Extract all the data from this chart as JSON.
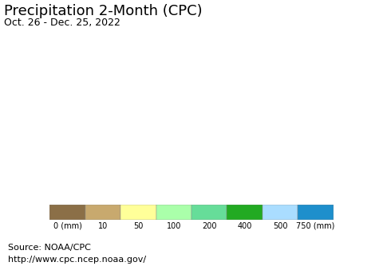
{
  "title": "Precipitation 2-Month (CPC)",
  "subtitle": "Oct. 26 - Dec. 25, 2022",
  "source_line1": "Source: NOAA/CPC",
  "source_line2": "http://www.cpc.ncep.noaa.gov/",
  "colorbar_colors": [
    "#8B6F47",
    "#C8A96E",
    "#FFFF99",
    "#AAFFAA",
    "#66DD99",
    "#22AA22",
    "#AADDFF",
    "#1E8FCC"
  ],
  "colorbar_labels": [
    "0 (mm)",
    "10",
    "50",
    "100",
    "200",
    "400",
    "500",
    "750 (mm)"
  ],
  "ocean_color": "#AAFFFF",
  "land_bg": "#FFFF99",
  "title_fontsize": 13,
  "subtitle_fontsize": 9,
  "source_fontsize": 8,
  "country_colors": {
    "Canada": "#AAFFAA",
    "United States of America": "#AAFFAA",
    "Mexico": "#FFFF99",
    "Guatemala": "#AAFFAA",
    "Belize": "#AAFFAA",
    "Honduras": "#AAFFAA",
    "El Salvador": "#AAFFAA",
    "Nicaragua": "#AAFFAA",
    "Costa Rica": "#66DD99",
    "Panama": "#66DD99",
    "Cuba": "#FFFF99",
    "Jamaica": "#FFFF99",
    "Haiti": "#FFFF99",
    "Dominican Rep.": "#FFFF99",
    "Puerto Rico": "#FFFF99",
    "Trinidad and Tobago": "#66DD99",
    "Colombia": "#66DD99",
    "Venezuela": "#FFFF99",
    "Guyana": "#66DD99",
    "Suriname": "#66DD99",
    "Fr. Guiana": "#66DD99",
    "Brazil": "#66DD99",
    "Ecuador": "#66DD99",
    "Peru": "#FFFF99",
    "Bolivia": "#AAFFAA",
    "Chile": "#8B6F47",
    "Argentina": "#FFFF99",
    "Uruguay": "#FFFF99",
    "Paraguay": "#AAFFAA",
    "Iceland": "#AAFFAA",
    "Norway": "#AAFFAA",
    "Sweden": "#AAFFAA",
    "Finland": "#AAFFAA",
    "Denmark": "#AAFFAA",
    "United Kingdom": "#AAFFAA",
    "Ireland": "#AAFFAA",
    "Portugal": "#FFFF99",
    "Spain": "#FFFF99",
    "France": "#AAFFAA",
    "Belgium": "#AAFFAA",
    "Netherlands": "#AAFFAA",
    "Luxembourg": "#AAFFAA",
    "Germany": "#AAFFAA",
    "Switzerland": "#AAFFAA",
    "Austria": "#AAFFAA",
    "Italy": "#FFFF99",
    "Czech Rep.": "#AAFFAA",
    "Slovakia": "#AAFFAA",
    "Poland": "#AAFFAA",
    "Hungary": "#AAFFAA",
    "Romania": "#AAFFAA",
    "Bulgaria": "#FFFF99",
    "Serbia": "#AAFFAA",
    "Croatia": "#FFFF99",
    "Bosnia and Herz.": "#FFFF99",
    "Slovenia": "#AAFFAA",
    "Albania": "#FFFF99",
    "North Macedonia": "#FFFF99",
    "Greece": "#FFFF99",
    "Estonia": "#AAFFAA",
    "Latvia": "#AAFFAA",
    "Lithuania": "#AAFFAA",
    "Belarus": "#AAFFAA",
    "Ukraine": "#AAFFAA",
    "Moldova": "#AAFFAA",
    "Russia": "#AAFFAA",
    "Turkey": "#FFFF99",
    "Georgia": "#FFFF99",
    "Armenia": "#FFFF99",
    "Azerbaijan": "#FFFF99",
    "Kazakhstan": "#C8A96E",
    "Uzbekistan": "#C8A96E",
    "Turkmenistan": "#C8A96E",
    "Kyrgyzstan": "#C8A96E",
    "Tajikistan": "#C8A96E",
    "Afghanistan": "#8B6F47",
    "Pakistan": "#8B6F47",
    "India": "#AAFFAA",
    "Sri Lanka": "#66DD99",
    "Nepal": "#FFFF99",
    "Bhutan": "#AAFFAA",
    "Bangladesh": "#AAFFAA",
    "Myanmar": "#AAFFAA",
    "Thailand": "#AAFFAA",
    "Laos": "#AAFFAA",
    "Vietnam": "#AAFFAA",
    "Cambodia": "#AAFFAA",
    "Malaysia": "#66DD99",
    "Indonesia": "#66DD99",
    "Philippines": "#1E8FCC",
    "Papua New Guinea": "#22AA22",
    "China": "#C8A96E",
    "Mongolia": "#C8A96E",
    "North Korea": "#AAFFAA",
    "South Korea": "#AAFFAA",
    "Japan": "#AAFFAA",
    "Taiwan": "#AAFFAA",
    "Iran": "#8B6F47",
    "Iraq": "#8B6F47",
    "Syria": "#8B6F47",
    "Jordan": "#8B6F47",
    "Israel": "#8B6F47",
    "Lebanon": "#8B6F47",
    "Saudi Arabia": "#8B6F47",
    "Yemen": "#8B6F47",
    "Oman": "#C8A96E",
    "UAE": "#C8A96E",
    "Qatar": "#C8A96E",
    "Bahrain": "#C8A96E",
    "Kuwait": "#8B6F47",
    "Egypt": "#8B6F47",
    "Libya": "#8B6F47",
    "Tunisia": "#C8A96E",
    "Algeria": "#8B6F47",
    "Morocco": "#C8A96E",
    "Western Sahara": "#8B6F47",
    "Mauritania": "#8B6F47",
    "Mali": "#8B6F47",
    "Niger": "#8B6F47",
    "Chad": "#8B6F47",
    "Sudan": "#8B6F47",
    "South Sudan": "#C8A96E",
    "Ethiopia": "#8B6F47",
    "Eritrea": "#8B6F47",
    "Djibouti": "#8B6F47",
    "Somalia": "#8B6F47",
    "Kenya": "#AAFFAA",
    "Uganda": "#AAFFAA",
    "Rwanda": "#66DD99",
    "Burundi": "#66DD99",
    "Tanzania": "#AAFFAA",
    "Mozambique": "#AAFFAA",
    "Zambia": "#AAFFAA",
    "Malawi": "#AAFFAA",
    "Zimbabwe": "#AAFFAA",
    "Botswana": "#FFFF99",
    "Namibia": "#FFFF99",
    "South Africa": "#FFFF99",
    "Lesotho": "#FFFF99",
    "Swaziland": "#AAFFAA",
    "eSwatini": "#AAFFAA",
    "Angola": "#C8A96E",
    "Congo": "#8B6F47",
    "Dem. Rep. Congo": "#8B6F47",
    "Central African Rep.": "#8B6F47",
    "Cameroon": "#8B6F47",
    "Nigeria": "#8B6F47",
    "Benin": "#8B6F47",
    "Togo": "#AAFFAA",
    "Ghana": "#8B6F47",
    "Côte d'Ivoire": "#8B6F47",
    "Liberia": "#8B6F47",
    "Sierra Leone": "#8B6F47",
    "Guinea": "#8B6F47",
    "Guinea-Bissau": "#8B6F47",
    "Gambia": "#8B6F47",
    "Senegal": "#C8A96E",
    "Burkina Faso": "#8B6F47",
    "Gabon": "#8B6F47",
    "Eq. Guinea": "#8B6F47",
    "Madagascar": "#AAFFAA",
    "Australia": "#FFFF99",
    "New Zealand": "#AAFFAA"
  }
}
